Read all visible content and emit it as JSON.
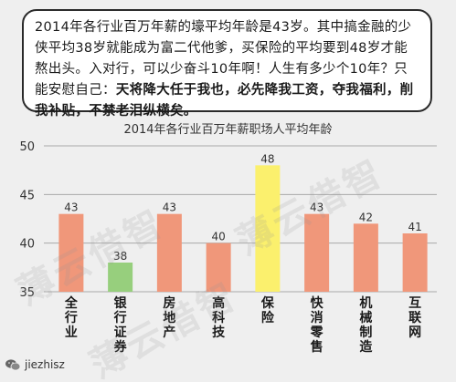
{
  "bubble": {
    "normal": "2014年各行业百万年薪的壕平均年龄是43岁。其中搞金融的少侠平均38岁就能成为富二代他爹，买保险的平均要到48岁才能熬出头。入对行，可以少奋斗10年啊！人生有多少个10年？只能安慰自己：",
    "bold": "天将降大任于我也，必先降我工资，夺我福利，削我补贴，不禁老泪纵横矣。"
  },
  "watermark": "薄云借智",
  "footer": {
    "handle": "jiezhisz"
  },
  "colors": {
    "orange": "#f0977a",
    "green": "#97cf7d",
    "yellow": "#fbf06d",
    "grid": "#aaaaaa",
    "text": "#333333"
  },
  "chart_data": {
    "type": "bar",
    "title": "2014年各行业百万年薪职场人平均年龄",
    "categories": [
      "全行业",
      "银行证券",
      "房地产",
      "高科技",
      "保险",
      "快消零售",
      "机械制造",
      "互联网"
    ],
    "values": [
      43,
      38,
      43,
      40,
      48,
      43,
      42,
      41
    ],
    "bar_colors": [
      "orange",
      "green",
      "orange",
      "orange",
      "yellow",
      "orange",
      "orange",
      "orange"
    ],
    "ylim": [
      35,
      50
    ],
    "yticks": [
      "35",
      "40",
      "45",
      "50"
    ],
    "grid": true
  }
}
